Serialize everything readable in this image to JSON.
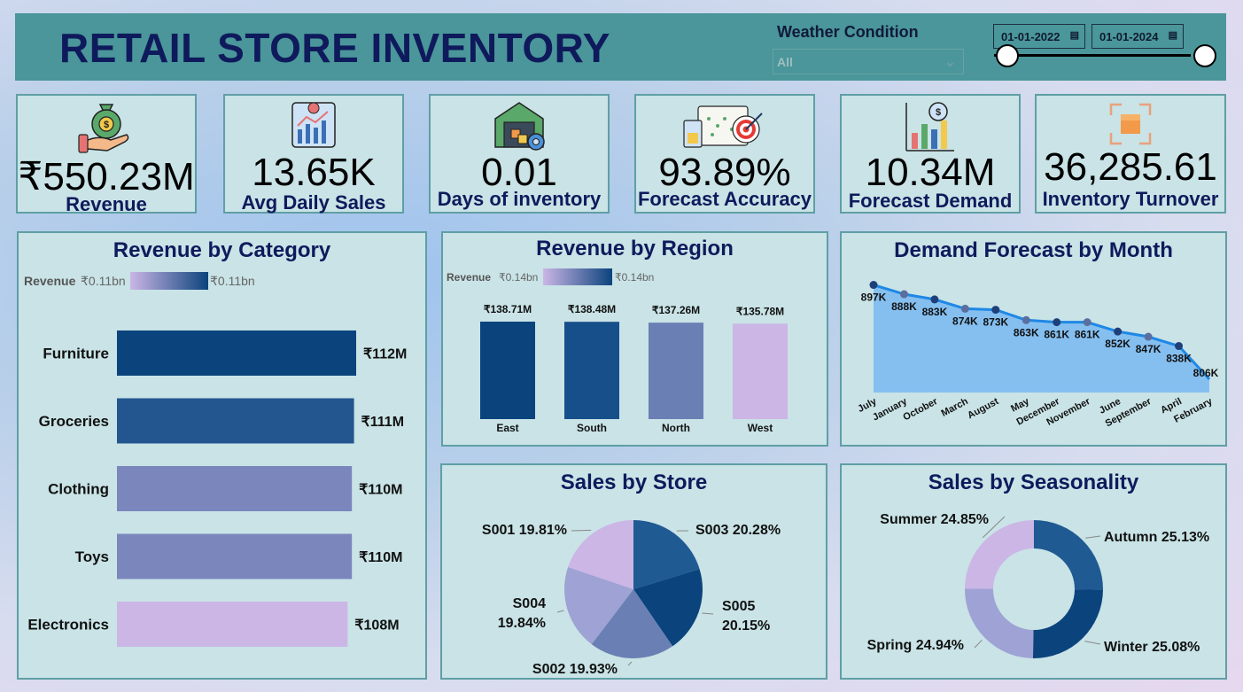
{
  "header": {
    "title": "RETAIL STORE INVENTORY",
    "weather_label": "Weather Condition",
    "weather_value": "All",
    "date_start": "01-01-2022",
    "date_end": "01-01-2024"
  },
  "kpis": [
    {
      "value": "₹550.23M",
      "label": "Revenue",
      "icon": "money-bag-hand-icon"
    },
    {
      "value": "13.65K",
      "label": "Avg Daily Sales",
      "icon": "sales-chart-icon"
    },
    {
      "value": "0.01",
      "label": "Days of inventory",
      "icon": "warehouse-gear-icon"
    },
    {
      "value": "93.89%",
      "label": "Forecast Accuracy",
      "icon": "target-calendar-icon"
    },
    {
      "value": "10.34M",
      "label": "Forecast Demand",
      "icon": "magnifier-chart-icon"
    },
    {
      "value": "36,285.61",
      "label": "Inventory Turnover",
      "icon": "box-cycle-icon"
    }
  ],
  "colors": {
    "dark": "#0b437c",
    "mid": "#1f5a92",
    "light_mid": "#6e80b8",
    "light": "#cbb6e6",
    "area": "#85bff0",
    "line": "#1e88e5"
  },
  "chart_data": [
    {
      "type": "bar",
      "orientation": "horizontal",
      "title": "Revenue by Category",
      "legend": {
        "label": "Revenue",
        "min": "₹0.11bn",
        "max": "₹0.11bn"
      },
      "categories": [
        "Furniture",
        "Groceries",
        "Clothing",
        "Toys",
        "Electronics"
      ],
      "values": [
        112,
        111,
        110,
        110,
        108
      ],
      "data_labels": [
        "₹112M",
        "₹111M",
        "₹110M",
        "₹110M",
        "₹108M"
      ],
      "colors": [
        "#0b437c",
        "#23558f",
        "#7b86bd",
        "#7b86bd",
        "#cbb6e6"
      ],
      "unit": "₹M"
    },
    {
      "type": "bar",
      "title": "Revenue by Region",
      "legend": {
        "label": "Revenue",
        "min": "₹0.14bn",
        "max": "₹0.14bn"
      },
      "categories": [
        "East",
        "South",
        "North",
        "West"
      ],
      "values": [
        138.71,
        138.48,
        137.26,
        135.78
      ],
      "data_labels": [
        "₹138.71M",
        "₹138.48M",
        "₹137.26M",
        "₹135.78M"
      ],
      "colors": [
        "#0b437c",
        "#174f8a",
        "#6a7fb4",
        "#cbb6e6"
      ],
      "unit": "₹M"
    },
    {
      "type": "area",
      "title": "Demand Forecast by Month",
      "categories": [
        "July",
        "January",
        "October",
        "March",
        "August",
        "May",
        "December",
        "November",
        "June",
        "September",
        "April",
        "February"
      ],
      "values": [
        897,
        888,
        883,
        874,
        873,
        863,
        861,
        861,
        852,
        847,
        838,
        806
      ],
      "data_labels": [
        "897K",
        "888K",
        "883K",
        "874K",
        "873K",
        "863K",
        "861K",
        "861K",
        "852K",
        "847K",
        "838K",
        "806K"
      ],
      "unit": "K"
    },
    {
      "type": "pie",
      "title": "Sales by Store",
      "labels": [
        "S003",
        "S005",
        "S002",
        "S004",
        "S001"
      ],
      "values": [
        20.28,
        20.15,
        19.93,
        19.84,
        19.81
      ],
      "data_labels": [
        "S003 20.28%",
        "S005 20.15%",
        "S002 19.93%",
        "S004 19.84%",
        "S001 19.81%"
      ],
      "colors": [
        "#1f5a92",
        "#0b437c",
        "#6a7fb4",
        "#9fa2d4",
        "#cbb6e6"
      ]
    },
    {
      "type": "pie",
      "subtype": "donut",
      "title": "Sales by Seasonality",
      "labels": [
        "Autumn",
        "Winter",
        "Spring",
        "Summer"
      ],
      "values": [
        25.13,
        25.08,
        24.94,
        24.85
      ],
      "data_labels": [
        "Autumn 25.13%",
        "Winter 25.08%",
        "Spring 24.94%",
        "Summer 24.85%"
      ],
      "colors": [
        "#1f5a92",
        "#0b437c",
        "#9fa2d4",
        "#cbb6e6"
      ]
    }
  ]
}
